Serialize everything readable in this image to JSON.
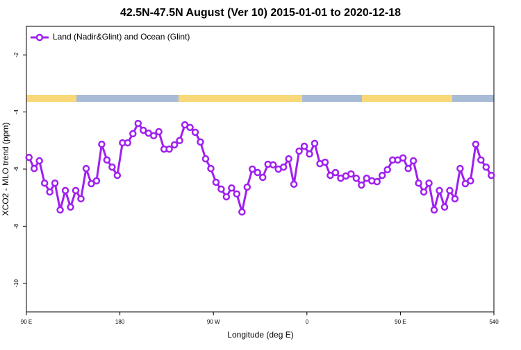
{
  "chart_data": {
    "type": "line",
    "title": "42.5N-47.5N August (Ver 10)   2015-01-01 to 2020-12-18",
    "x_label": "Longitude (deg E)",
    "y_label": "XCO2 - MLO trend (ppm)",
    "xlim": [
      90,
      540
    ],
    "xticks": [
      {
        "value": 90,
        "label": "90 E"
      },
      180,
      {
        "value": 270,
        "label": "90 W"
      },
      {
        "value": 360,
        "label": "0"
      },
      {
        "value": 450,
        "label": "90 E"
      },
      540
    ],
    "ylim": [
      -11,
      -1
    ],
    "yticks": [
      -2,
      -4,
      -6,
      -8,
      -10
    ],
    "legend": "top-left",
    "x": [
      92.5,
      97.5,
      102.5,
      107.5,
      112.5,
      117.5,
      122.5,
      127.5,
      132.5,
      137.5,
      142.5,
      147.5,
      152.5,
      157.5,
      162.5,
      167.5,
      172.5,
      177.5,
      182.5,
      187.5,
      192.5,
      197.5,
      202.5,
      207.5,
      212.5,
      217.5,
      222.5,
      227.5,
      232.5,
      237.5,
      242.5,
      247.5,
      252.5,
      257.5,
      262.5,
      267.5,
      272.5,
      277.5,
      282.5,
      287.5,
      292.5,
      297.5,
      302.5,
      307.5,
      312.5,
      317.5,
      322.5,
      327.5,
      332.5,
      337.5,
      342.5,
      347.5,
      352.5,
      357.5,
      362.5,
      367.5,
      372.5,
      377.5,
      382.5,
      387.5,
      392.5,
      397.5,
      402.5,
      407.5,
      412.5,
      417.5,
      422.5,
      427.5,
      432.5,
      437.5,
      442.5,
      447.5,
      452.5,
      457.5,
      462.5,
      467.5,
      472.5,
      477.5,
      482.5,
      487.5,
      492.5,
      497.5,
      502.5,
      507.5,
      512.5,
      517.5,
      522.5,
      527.5,
      532.5,
      537.5
    ],
    "series": [
      {
        "name": "Land (Nadir&Glint) and Ocean (Glint)",
        "color": "#a020f0",
        "values": [
          -5.59,
          -5.98,
          -5.71,
          -6.49,
          -6.8,
          -6.49,
          -7.43,
          -6.75,
          -7.33,
          -6.75,
          -7.04,
          -5.98,
          -6.51,
          -6.41,
          -5.13,
          -5.68,
          -5.93,
          -6.22,
          -5.08,
          -5.08,
          -4.76,
          -4.4,
          -4.64,
          -4.74,
          -4.83,
          -4.69,
          -5.3,
          -5.3,
          -5.15,
          -5.0,
          -4.45,
          -4.54,
          -4.71,
          -5.05,
          -5.64,
          -5.98,
          -6.46,
          -6.7,
          -6.97,
          -6.66,
          -6.87,
          -7.5,
          -6.63,
          -6.0,
          -6.12,
          -6.29,
          -5.83,
          -5.85,
          -6.0,
          -5.93,
          -5.64,
          -6.53,
          -5.37,
          -5.2,
          -5.47,
          -5.1,
          -5.81,
          -5.76,
          -6.22,
          -6.12,
          -6.32,
          -6.24,
          -6.17,
          -6.32,
          -6.56,
          -6.32,
          -6.41,
          -6.44,
          -6.22,
          -6.02,
          -5.68,
          -5.68,
          -5.61,
          -5.98,
          -5.71,
          -6.49,
          -6.8,
          -6.49,
          -7.43,
          -6.75,
          -7.33,
          -6.75,
          -7.04,
          -5.98,
          -6.51,
          -6.41,
          -5.13,
          -5.68,
          -5.93,
          -6.22
        ]
      }
    ]
  }
}
